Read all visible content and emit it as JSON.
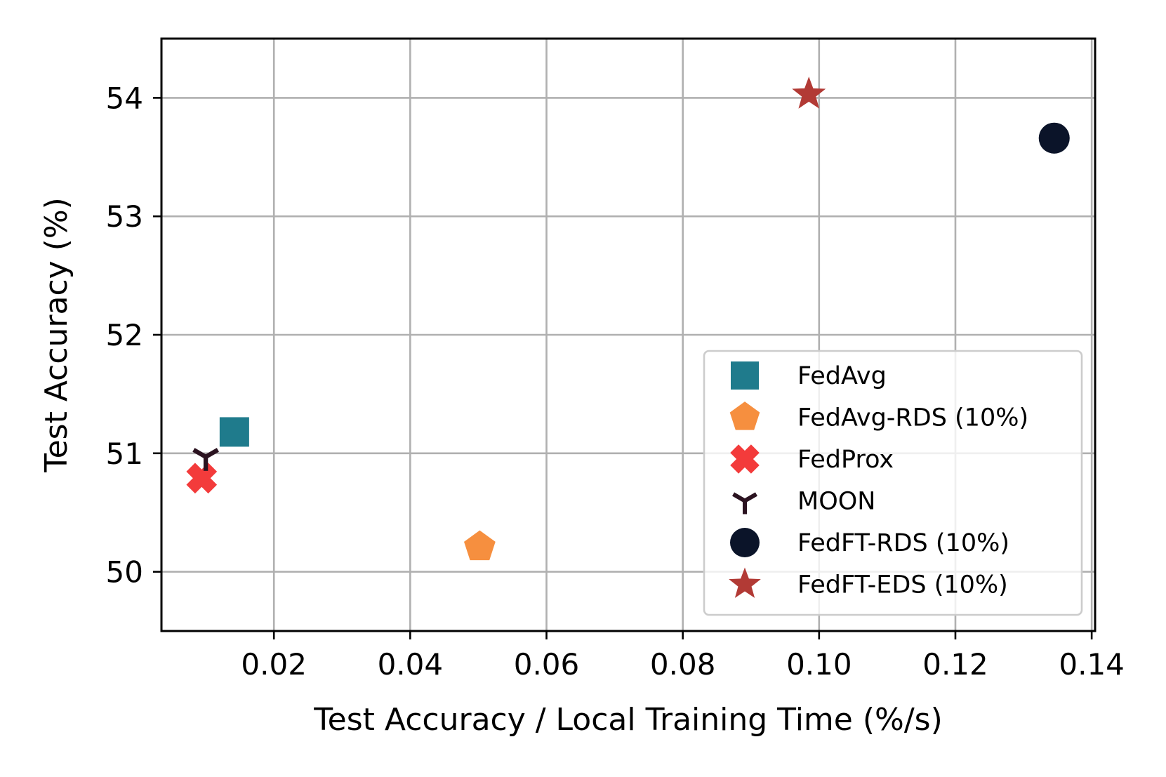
{
  "chart_data": {
    "type": "scatter",
    "title": "",
    "xlabel": "Test Accuracy / Local Training Time (%/s)",
    "ylabel": "Test Accuracy (%)",
    "xlim": [
      0.0035,
      0.1405
    ],
    "ylim": [
      49.5,
      54.5
    ],
    "xticks": [
      0.02,
      0.04,
      0.06,
      0.08,
      0.1,
      0.12,
      0.14
    ],
    "xtick_labels": [
      "0.02",
      "0.04",
      "0.06",
      "0.08",
      "0.10",
      "0.12",
      "0.14"
    ],
    "yticks": [
      50,
      51,
      52,
      53,
      54
    ],
    "ytick_labels": [
      "50",
      "51",
      "52",
      "53",
      "54"
    ],
    "grid": true,
    "legend_position": "lower-right",
    "series": [
      {
        "name": "FedAvg",
        "marker": "square",
        "color": "#1f7b8c",
        "points": [
          {
            "x": 0.0142,
            "y": 51.18
          }
        ]
      },
      {
        "name": "FedAvg-RDS (10%)",
        "marker": "pentagon",
        "color": "#f68f3f",
        "points": [
          {
            "x": 0.0502,
            "y": 50.21
          }
        ]
      },
      {
        "name": "FedProx",
        "marker": "x-filled",
        "color": "#f33b3b",
        "points": [
          {
            "x": 0.0094,
            "y": 50.79
          }
        ]
      },
      {
        "name": "MOON",
        "marker": "tri-down",
        "color": "#2b1320",
        "points": [
          {
            "x": 0.01,
            "y": 50.97
          }
        ]
      },
      {
        "name": "FedFT-RDS (10%)",
        "marker": "circle",
        "color": "#0b1429",
        "points": [
          {
            "x": 0.1345,
            "y": 53.66
          }
        ]
      },
      {
        "name": "FedFT-EDS (10%)",
        "marker": "star",
        "color": "#b23a35",
        "points": [
          {
            "x": 0.0985,
            "y": 54.03
          }
        ]
      }
    ]
  }
}
